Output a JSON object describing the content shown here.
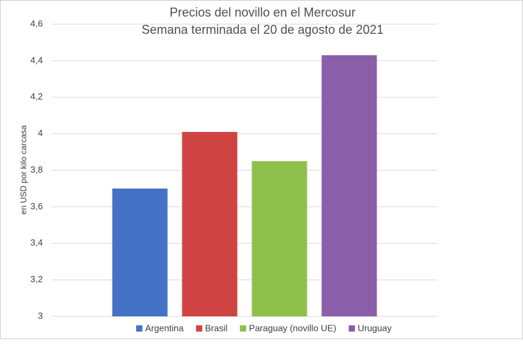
{
  "chart_data": {
    "type": "bar",
    "title": "Precios del novillo en el Mercosur",
    "subtitle": "Semana terminada el 20 de agosto de 2021",
    "y_label": "en USD por kilo carcasa",
    "series": [
      {
        "name": "Argentina",
        "color": "#4472c4",
        "values": [
          3.7
        ]
      },
      {
        "name": "Brasil",
        "color": "#d04343",
        "values": [
          4.01
        ]
      },
      {
        "name": "Paraguay (novillo UE)",
        "color": "#8fc04c",
        "values": [
          3.85
        ]
      },
      {
        "name": "Uruguay",
        "color": "#8a5ea8",
        "values": [
          4.43
        ]
      }
    ],
    "ylim": [
      3,
      4.6
    ],
    "yticks": [
      3,
      {
        "value": 3.2,
        "label": "3,2"
      },
      {
        "value": 3.4,
        "label": "3,4"
      },
      {
        "value": 3.6,
        "label": "3,6"
      },
      {
        "value": 3.8,
        "label": "3,8"
      },
      4,
      {
        "value": 4.2,
        "label": "4,2"
      },
      {
        "value": 4.4,
        "label": "4,4"
      },
      {
        "value": 4.6,
        "label": "4,6"
      }
    ],
    "grid": true,
    "legend": "bottom"
  }
}
